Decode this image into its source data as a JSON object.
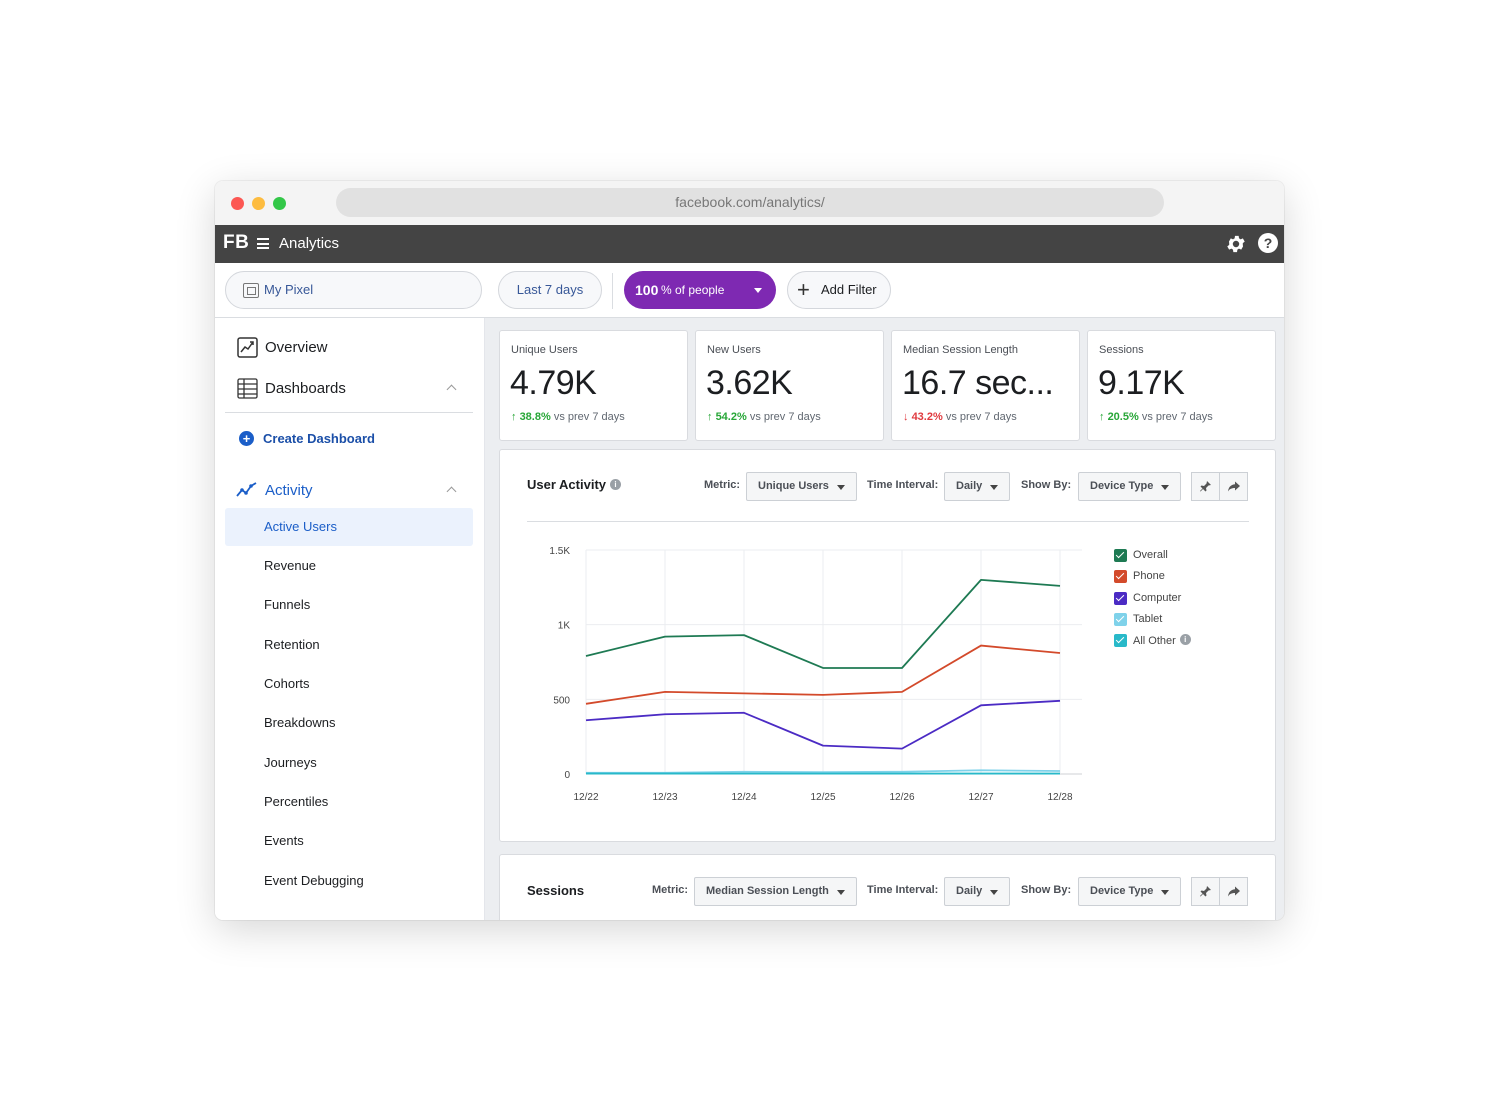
{
  "browser": {
    "url": "facebook.com/analytics/"
  },
  "appbar": {
    "logo": "FB",
    "title": "Analytics"
  },
  "filters": {
    "pixel": "My Pixel",
    "range": "Last 7 days",
    "people_value": "100",
    "people_label": "% of people",
    "add_filter": "Add Filter"
  },
  "sidebar": {
    "overview": "Overview",
    "dashboards": "Dashboards",
    "create_dashboard": "Create Dashboard",
    "activity": "Activity",
    "items": [
      "Active Users",
      "Revenue",
      "Funnels",
      "Retention",
      "Cohorts",
      "Breakdowns",
      "Journeys",
      "Percentiles",
      "Events",
      "Event Debugging"
    ],
    "active_item": "Active Users"
  },
  "kpis": [
    {
      "label": "Unique Users",
      "value": "4.79K",
      "delta": "38.8%",
      "direction": "up",
      "suffix": "vs prev 7 days"
    },
    {
      "label": "New Users",
      "value": "3.62K",
      "delta": "54.2%",
      "direction": "up",
      "suffix": "vs prev 7 days"
    },
    {
      "label": "Median Session Length",
      "value": "16.7 sec...",
      "delta": "43.2%",
      "direction": "down",
      "suffix": "vs prev 7 days"
    },
    {
      "label": "Sessions",
      "value": "9.17K",
      "delta": "20.5%",
      "direction": "up",
      "suffix": "vs prev 7 days"
    }
  ],
  "user_activity": {
    "title": "User Activity",
    "metric_label": "Metric:",
    "metric_value": "Unique Users",
    "interval_label": "Time Interval:",
    "interval_value": "Daily",
    "showby_label": "Show By:",
    "showby_value": "Device Type"
  },
  "sessions_panel": {
    "title": "Sessions",
    "metric_label": "Metric:",
    "metric_value": "Median Session Length",
    "interval_label": "Time Interval:",
    "interval_value": "Daily",
    "showby_label": "Show By:",
    "showby_value": "Device Type"
  },
  "colors": {
    "accent": "#1b5ec8",
    "people_pill": "#7e29b2",
    "up": "#27a637",
    "down": "#e0393e"
  },
  "chart_data": {
    "type": "line",
    "x": [
      "12/22",
      "12/23",
      "12/24",
      "12/25",
      "12/26",
      "12/27",
      "12/28"
    ],
    "y_ticks": [
      {
        "value": 0,
        "label": "0"
      },
      {
        "value": 500,
        "label": "500"
      },
      {
        "value": 1000,
        "label": "1K"
      },
      {
        "value": 1500,
        "label": "1.5K"
      }
    ],
    "ylim": [
      0,
      1500
    ],
    "grid": true,
    "legend_position": "right",
    "series": [
      {
        "name": "Overall",
        "color": "#1e7a53",
        "values": [
          790,
          920,
          930,
          710,
          710,
          1300,
          1260
        ]
      },
      {
        "name": "Phone",
        "color": "#d34a2b",
        "values": [
          470,
          550,
          540,
          530,
          550,
          860,
          810
        ]
      },
      {
        "name": "Computer",
        "color": "#4b2bc4",
        "values": [
          360,
          400,
          410,
          190,
          170,
          460,
          490
        ]
      },
      {
        "name": "Tablet",
        "color": "#7fd2ea",
        "values": [
          8,
          8,
          15,
          12,
          15,
          25,
          20
        ]
      },
      {
        "name": "All Other",
        "color": "#28b9c9",
        "values": [
          3,
          3,
          3,
          3,
          3,
          3,
          3
        ],
        "info": "i"
      }
    ]
  }
}
